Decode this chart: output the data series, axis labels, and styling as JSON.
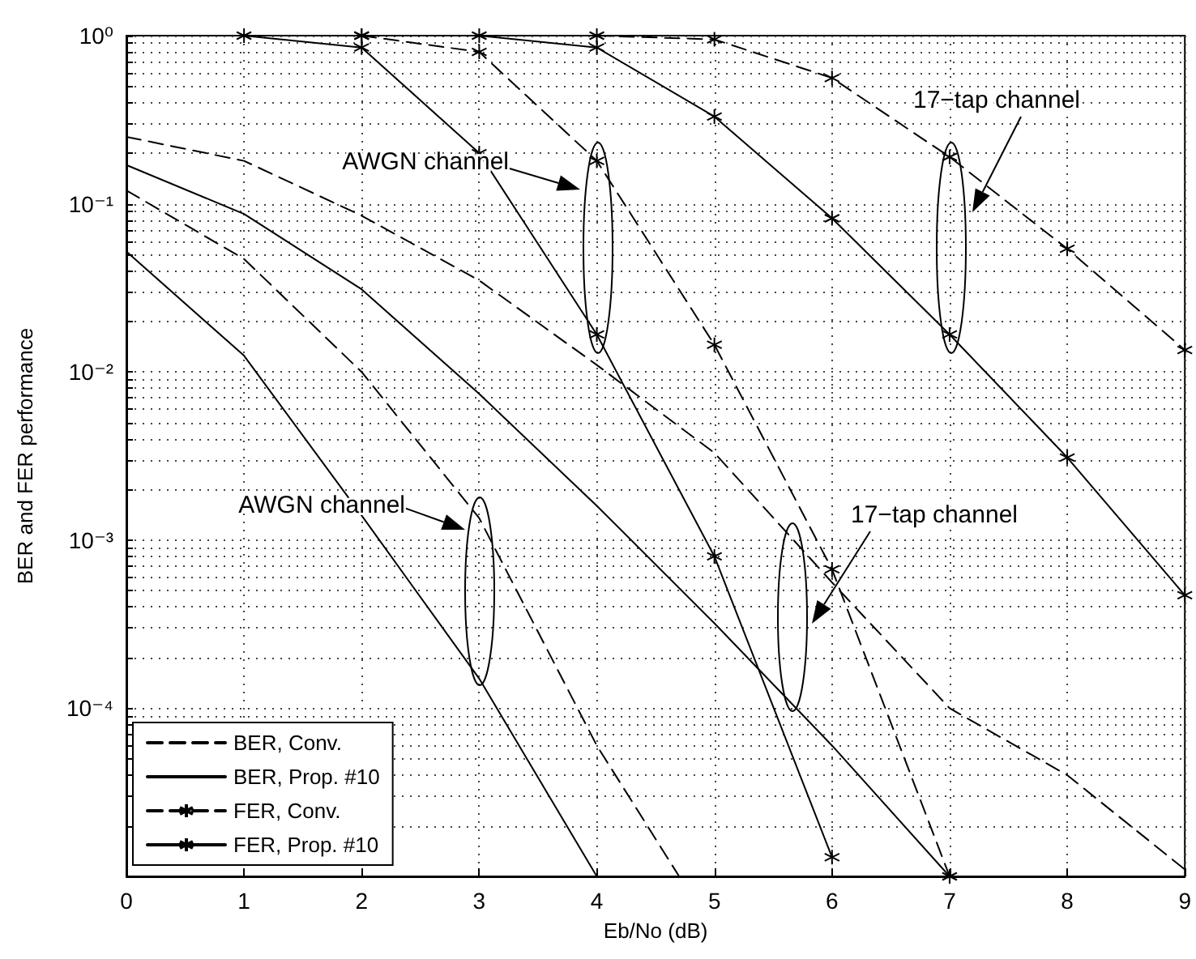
{
  "chart_data": {
    "type": "line",
    "xlabel": "Eb/No (dB)",
    "ylabel": "BER and FER performance",
    "xlim": [
      0,
      9
    ],
    "xticks": [
      0,
      1,
      2,
      3,
      4,
      5,
      6,
      7,
      8,
      9
    ],
    "ylim": [
      1e-05,
      1
    ],
    "yticks": [
      {
        "value": 0.0001,
        "label": "10⁻⁴"
      },
      {
        "value": 0.001,
        "label": "10⁻³"
      },
      {
        "value": 0.01,
        "label": "10⁻²"
      },
      {
        "value": 0.1,
        "label": "10⁻¹"
      },
      {
        "value": 1,
        "label": "10⁰"
      }
    ],
    "log": "y",
    "grid": true,
    "legend": "bottom left",
    "series": [
      {
        "name": "BER, Conv.",
        "color": "#000000",
        "line_style": "dashed",
        "marker": "none",
        "x": [
          0,
          1,
          2,
          3,
          4,
          4.7
        ],
        "values": [
          0.12,
          0.047,
          0.01,
          0.00135,
          6e-05,
          1e-05
        ]
      },
      {
        "color": "#000000",
        "line_style": "dashed",
        "marker": "none",
        "x": [
          0,
          1,
          2,
          3,
          4,
          5,
          6,
          7,
          8,
          9
        ],
        "values": [
          0.25,
          0.18,
          0.085,
          0.035,
          0.011,
          0.0033,
          0.00056,
          0.0001,
          4e-05,
          1.1e-05
        ]
      },
      {
        "name": "BER, Prop. #10",
        "color": "#000000",
        "line_style": "solid",
        "marker": "none",
        "x": [
          0,
          1,
          2,
          3,
          4
        ],
        "values": [
          0.052,
          0.0125,
          0.0014,
          0.00015,
          1e-05
        ]
      },
      {
        "color": "#000000",
        "line_style": "solid",
        "marker": "none",
        "x": [
          0,
          1,
          2,
          3,
          4,
          5,
          6,
          7
        ],
        "values": [
          0.17,
          0.087,
          0.031,
          0.0074,
          0.0016,
          0.00032,
          6e-05,
          1e-05
        ]
      },
      {
        "name": "FER, Conv.",
        "color": "#000000",
        "line_style": "dashed",
        "marker": "cross",
        "x": [
          2,
          3,
          4,
          5,
          6,
          7
        ],
        "values": [
          1,
          0.8,
          0.18,
          0.0145,
          0.00067,
          1e-05
        ]
      },
      {
        "color": "#000000",
        "line_style": "dashed",
        "marker": "cross",
        "x": [
          4,
          5,
          6,
          7,
          8,
          9
        ],
        "values": [
          1,
          0.95,
          0.56,
          0.19,
          0.054,
          0.0135
        ]
      },
      {
        "name": "FER, Prop. #10",
        "color": "#000000",
        "line_style": "solid",
        "marker": "cross",
        "x": [
          1,
          2,
          3,
          4,
          5,
          6
        ],
        "values": [
          1,
          0.85,
          0.2,
          0.0167,
          0.0008,
          1.3e-05
        ]
      },
      {
        "color": "#000000",
        "line_style": "solid",
        "marker": "cross",
        "x": [
          2,
          3,
          4,
          5,
          6,
          7,
          8,
          9
        ],
        "values": [
          1,
          1,
          0.85,
          0.33,
          0.082,
          0.0167,
          0.0031,
          0.00047
        ]
      }
    ],
    "annotations": [
      "AWGN channel",
      "17−tap channel",
      "AWGN channel",
      "17−tap channel"
    ]
  }
}
